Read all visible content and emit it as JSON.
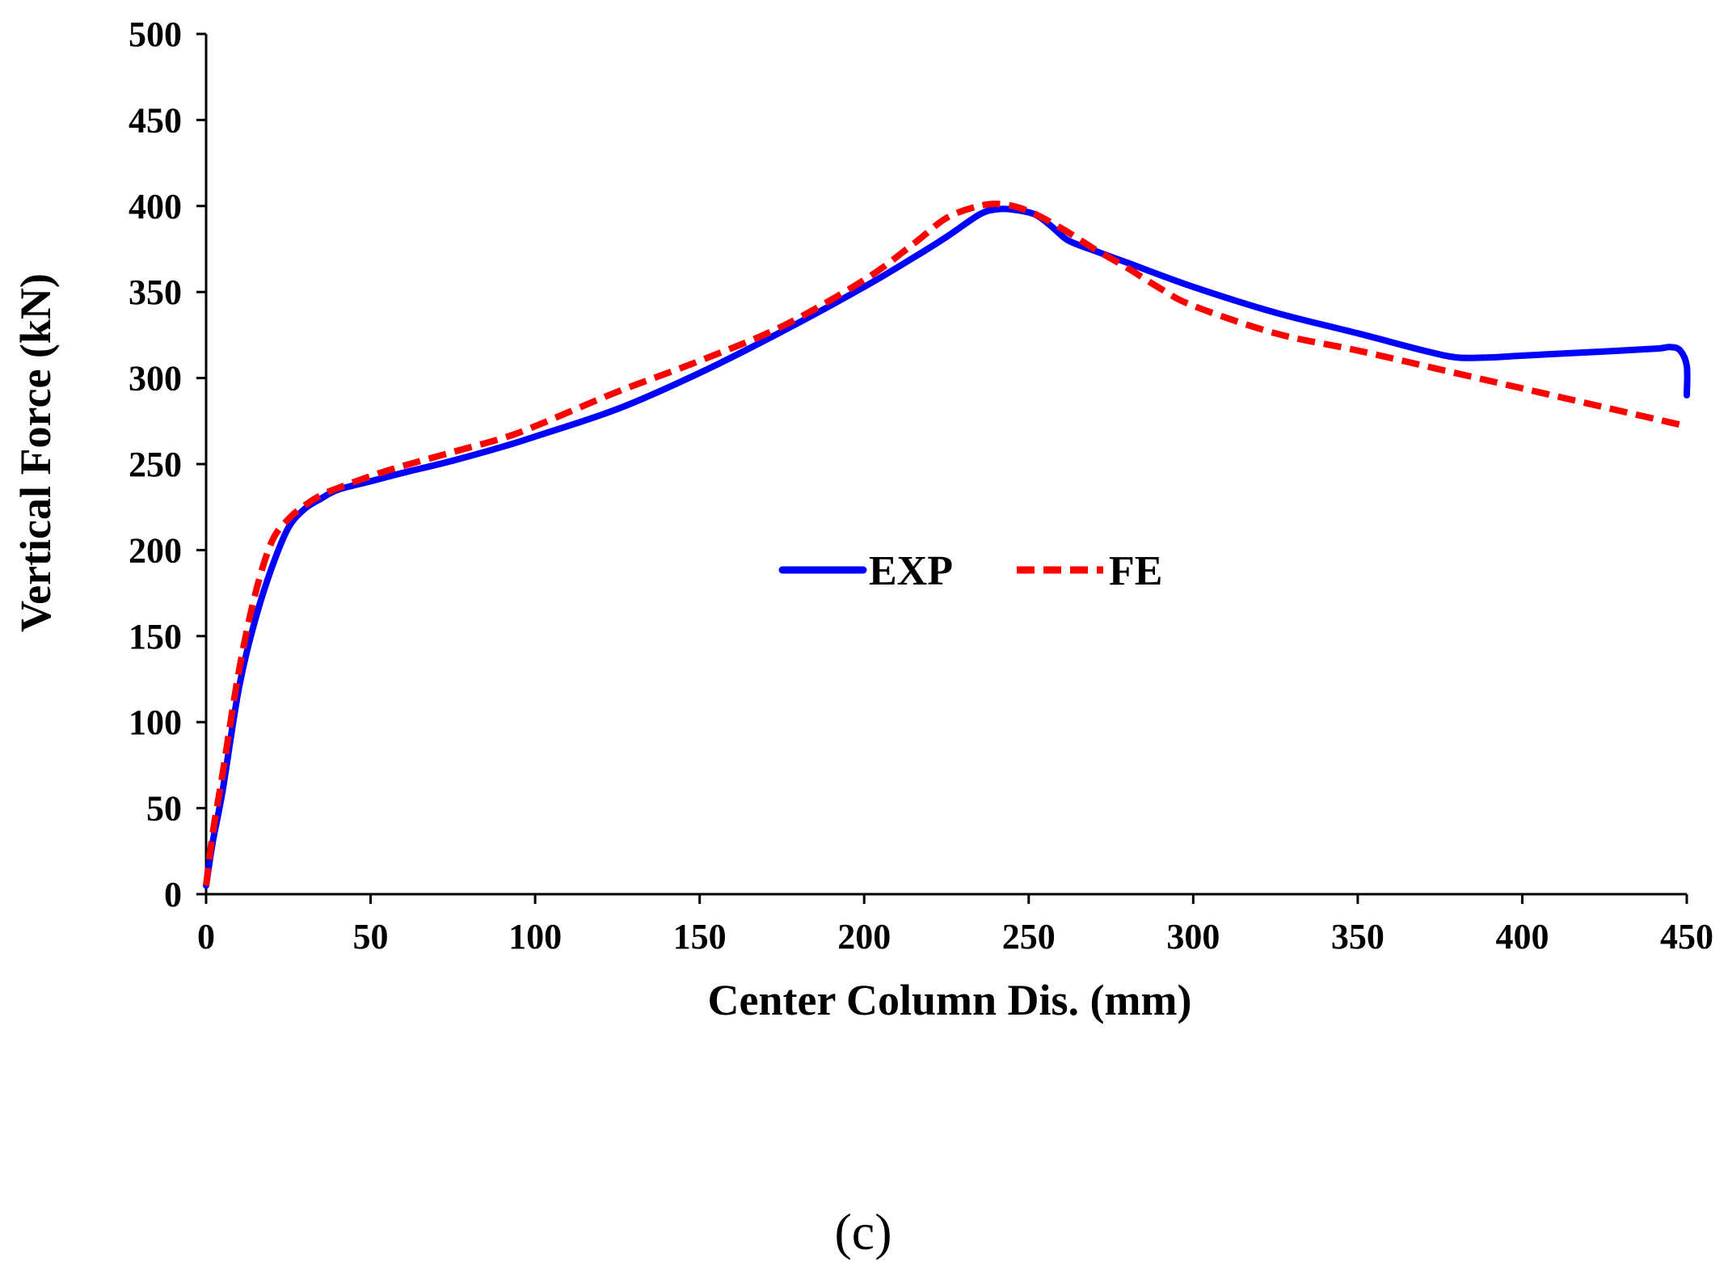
{
  "chart_data": {
    "type": "line",
    "title": "",
    "xlabel": "Center Column Dis. (mm)",
    "ylabel": "Vertical Force (kN)",
    "xlim": [
      0,
      450
    ],
    "ylim": [
      0,
      500
    ],
    "x_ticks": [
      0,
      50,
      100,
      150,
      200,
      250,
      300,
      350,
      400,
      450
    ],
    "y_ticks": [
      0,
      50,
      100,
      150,
      200,
      250,
      300,
      350,
      400,
      450,
      500
    ],
    "grid": false,
    "legend_position": "center",
    "series": [
      {
        "name": "EXP",
        "color": "#0000ff",
        "style": "solid",
        "points": [
          [
            0,
            5
          ],
          [
            2,
            30
          ],
          [
            5,
            60
          ],
          [
            10,
            120
          ],
          [
            15,
            160
          ],
          [
            20,
            190
          ],
          [
            25,
            213
          ],
          [
            30,
            224
          ],
          [
            35,
            230
          ],
          [
            40,
            235
          ],
          [
            50,
            240
          ],
          [
            60,
            245
          ],
          [
            75,
            252
          ],
          [
            90,
            260
          ],
          [
            100,
            266
          ],
          [
            125,
            282
          ],
          [
            150,
            303
          ],
          [
            175,
            327
          ],
          [
            200,
            353
          ],
          [
            215,
            370
          ],
          [
            225,
            382
          ],
          [
            235,
            395
          ],
          [
            240,
            398
          ],
          [
            245,
            398
          ],
          [
            252,
            395
          ],
          [
            257,
            388
          ],
          [
            262,
            380
          ],
          [
            270,
            374
          ],
          [
            280,
            367
          ],
          [
            300,
            353
          ],
          [
            325,
            338
          ],
          [
            350,
            326
          ],
          [
            370,
            316
          ],
          [
            380,
            312
          ],
          [
            390,
            312
          ],
          [
            400,
            313
          ],
          [
            420,
            315
          ],
          [
            440,
            317
          ],
          [
            445,
            318
          ],
          [
            448,
            316
          ],
          [
            450,
            307
          ],
          [
            450,
            290
          ]
        ]
      },
      {
        "name": "FE",
        "color": "#ff0000",
        "style": "dashed",
        "points": [
          [
            0,
            5
          ],
          [
            2,
            35
          ],
          [
            5,
            70
          ],
          [
            10,
            130
          ],
          [
            15,
            175
          ],
          [
            20,
            205
          ],
          [
            25,
            218
          ],
          [
            30,
            226
          ],
          [
            35,
            232
          ],
          [
            40,
            236
          ],
          [
            50,
            243
          ],
          [
            60,
            249
          ],
          [
            75,
            257
          ],
          [
            90,
            265
          ],
          [
            100,
            272
          ],
          [
            125,
            292
          ],
          [
            150,
            310
          ],
          [
            175,
            330
          ],
          [
            200,
            357
          ],
          [
            215,
            378
          ],
          [
            225,
            393
          ],
          [
            235,
            400
          ],
          [
            242,
            401
          ],
          [
            250,
            397
          ],
          [
            260,
            387
          ],
          [
            270,
            375
          ],
          [
            280,
            364
          ],
          [
            290,
            352
          ],
          [
            300,
            342
          ],
          [
            325,
            326
          ],
          [
            350,
            316
          ],
          [
            375,
            305
          ],
          [
            400,
            294
          ],
          [
            425,
            283
          ],
          [
            450,
            272
          ]
        ]
      }
    ],
    "panel_label": "(c)"
  }
}
